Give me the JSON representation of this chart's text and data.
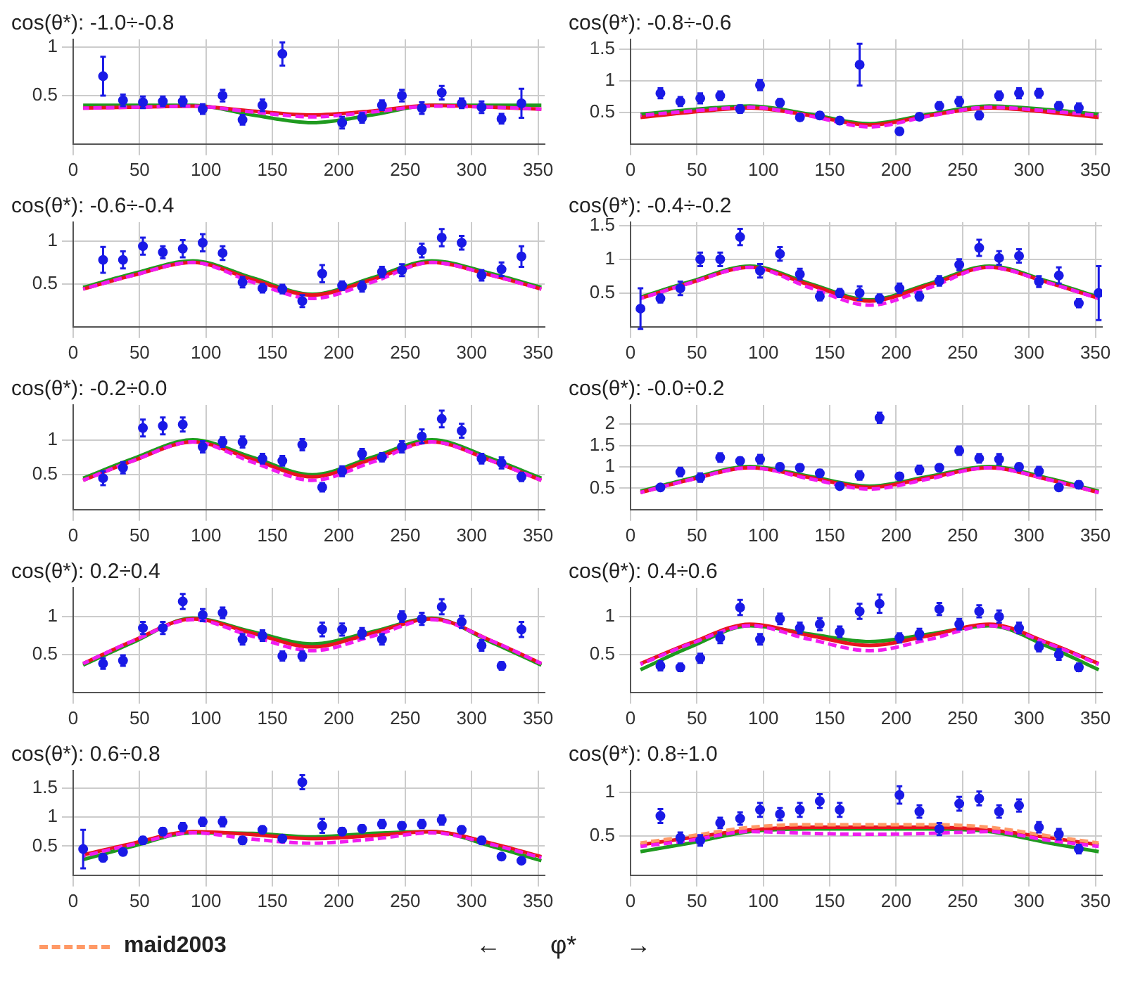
{
  "chart_data": [
    {
      "type": "scatter",
      "title": "cos(θ*): -1.0÷-0.8",
      "xlim": [
        0,
        355
      ],
      "xticks": [
        0,
        50,
        100,
        150,
        200,
        250,
        300,
        350
      ],
      "ylim": [
        0,
        1.08
      ],
      "yticks": [
        0.5,
        1
      ],
      "grid": true,
      "series": [
        {
          "type": "scatter",
          "marker": "circle",
          "color": "#1a1ae6",
          "x": [
            22.5,
            37.5,
            52.5,
            67.5,
            82.5,
            97.5,
            112.5,
            127.5,
            142.5,
            157.5,
            202.5,
            217.5,
            232.5,
            247.5,
            262.5,
            277.5,
            292.5,
            307.5,
            322.5,
            337.5
          ],
          "values": [
            0.7,
            0.45,
            0.43,
            0.44,
            0.44,
            0.36,
            0.5,
            0.25,
            0.4,
            0.93,
            0.22,
            0.27,
            0.4,
            0.5,
            0.37,
            0.53,
            0.42,
            0.38,
            0.26,
            0.42
          ],
          "errors": [
            0.2,
            0.06,
            0.06,
            0.05,
            0.05,
            0.05,
            0.06,
            0.05,
            0.06,
            0.12,
            0.06,
            0.05,
            0.05,
            0.06,
            0.06,
            0.07,
            0.05,
            0.06,
            0.05,
            0.15
          ]
        },
        {
          "type": "line",
          "color": "#e8141e",
          "x": [
            7.5,
            45,
            90,
            135,
            180,
            225,
            270,
            315,
            352.5
          ],
          "values": [
            0.37,
            0.38,
            0.39,
            0.34,
            0.3,
            0.34,
            0.4,
            0.38,
            0.36
          ]
        },
        {
          "type": "line",
          "color": "#1f9a1f",
          "x": [
            7.5,
            45,
            90,
            135,
            180,
            225,
            270,
            315,
            352.5
          ],
          "values": [
            0.4,
            0.4,
            0.4,
            0.3,
            0.22,
            0.3,
            0.4,
            0.4,
            0.4
          ]
        },
        {
          "type": "line",
          "color": "#f01cf0",
          "line_style": "dashed",
          "x": [
            7.5,
            45,
            90,
            135,
            180,
            225,
            270,
            315,
            352.5
          ],
          "values": [
            0.37,
            0.38,
            0.39,
            0.33,
            0.28,
            0.33,
            0.39,
            0.38,
            0.36
          ]
        }
      ]
    },
    {
      "type": "scatter",
      "title": "cos(θ*): -0.8÷-0.6",
      "xlim": [
        0,
        355
      ],
      "xticks": [
        0,
        50,
        100,
        150,
        200,
        250,
        300,
        350
      ],
      "ylim": [
        0,
        1.65
      ],
      "yticks": [
        0.5,
        1,
        1.5
      ],
      "grid": true,
      "series": [
        {
          "type": "scatter",
          "marker": "circle",
          "color": "#1a1ae6",
          "x": [
            22.5,
            37.5,
            52.5,
            67.5,
            82.5,
            97.5,
            112.5,
            127.5,
            142.5,
            157.5,
            172.5,
            202.5,
            217.5,
            232.5,
            247.5,
            262.5,
            277.5,
            292.5,
            307.5,
            322.5,
            337.5
          ],
          "values": [
            0.8,
            0.67,
            0.72,
            0.76,
            0.55,
            0.93,
            0.65,
            0.42,
            0.45,
            0.37,
            1.25,
            0.2,
            0.43,
            0.6,
            0.67,
            0.45,
            0.76,
            0.8,
            0.8,
            0.6,
            0.57
          ],
          "errors": [
            0.08,
            0.07,
            0.08,
            0.07,
            0.06,
            0.08,
            0.06,
            0.05,
            0.05,
            0.05,
            0.33,
            0.05,
            0.05,
            0.06,
            0.07,
            0.06,
            0.07,
            0.08,
            0.07,
            0.06,
            0.07
          ]
        },
        {
          "type": "line",
          "color": "#e8141e",
          "x": [
            7.5,
            45,
            90,
            135,
            180,
            225,
            270,
            315,
            352.5
          ],
          "values": [
            0.42,
            0.5,
            0.57,
            0.45,
            0.3,
            0.45,
            0.57,
            0.5,
            0.42
          ]
        },
        {
          "type": "line",
          "color": "#1f9a1f",
          "x": [
            7.5,
            45,
            90,
            135,
            180,
            225,
            270,
            315,
            352.5
          ],
          "values": [
            0.47,
            0.54,
            0.6,
            0.47,
            0.32,
            0.47,
            0.6,
            0.54,
            0.47
          ]
        },
        {
          "type": "line",
          "color": "#f01cf0",
          "line_style": "dashed",
          "x": [
            7.5,
            45,
            90,
            135,
            180,
            225,
            270,
            315,
            352.5
          ],
          "values": [
            0.45,
            0.52,
            0.58,
            0.44,
            0.27,
            0.44,
            0.58,
            0.52,
            0.45
          ]
        }
      ]
    },
    {
      "type": "scatter",
      "title": "cos(θ*): -0.6÷-0.4",
      "xlim": [
        0,
        355
      ],
      "xticks": [
        0,
        50,
        100,
        150,
        200,
        250,
        300,
        350
      ],
      "ylim": [
        0,
        1.22
      ],
      "yticks": [
        0.5,
        1
      ],
      "grid": true,
      "series": [
        {
          "type": "scatter",
          "marker": "circle",
          "color": "#1a1ae6",
          "x": [
            22.5,
            37.5,
            52.5,
            67.5,
            82.5,
            97.5,
            112.5,
            127.5,
            142.5,
            157.5,
            172.5,
            187.5,
            202.5,
            217.5,
            232.5,
            247.5,
            262.5,
            277.5,
            292.5,
            307.5,
            322.5,
            337.5
          ],
          "values": [
            0.78,
            0.78,
            0.94,
            0.87,
            0.91,
            0.98,
            0.86,
            0.52,
            0.45,
            0.44,
            0.3,
            0.62,
            0.48,
            0.47,
            0.64,
            0.66,
            0.89,
            1.04,
            0.98,
            0.6,
            0.67,
            0.82
          ],
          "errors": [
            0.15,
            0.1,
            0.1,
            0.07,
            0.1,
            0.1,
            0.08,
            0.06,
            0.05,
            0.05,
            0.07,
            0.1,
            0.05,
            0.06,
            0.06,
            0.07,
            0.08,
            0.1,
            0.08,
            0.06,
            0.08,
            0.12
          ]
        },
        {
          "type": "line",
          "color": "#e8141e",
          "x": [
            7.5,
            45,
            90,
            135,
            180,
            225,
            270,
            315,
            352.5
          ],
          "values": [
            0.44,
            0.6,
            0.75,
            0.55,
            0.37,
            0.55,
            0.75,
            0.6,
            0.44
          ]
        },
        {
          "type": "line",
          "color": "#1f9a1f",
          "x": [
            7.5,
            45,
            90,
            135,
            180,
            225,
            270,
            315,
            352.5
          ],
          "values": [
            0.46,
            0.62,
            0.77,
            0.57,
            0.38,
            0.57,
            0.77,
            0.62,
            0.46
          ]
        },
        {
          "type": "line",
          "color": "#f01cf0",
          "line_style": "dashed",
          "x": [
            7.5,
            45,
            90,
            135,
            180,
            225,
            270,
            315,
            352.5
          ],
          "values": [
            0.44,
            0.6,
            0.75,
            0.52,
            0.33,
            0.52,
            0.75,
            0.6,
            0.44
          ]
        }
      ]
    },
    {
      "type": "scatter",
      "title": "cos(θ*): -0.4÷-0.2",
      "xlim": [
        0,
        355
      ],
      "xticks": [
        0,
        50,
        100,
        150,
        200,
        250,
        300,
        350
      ],
      "ylim": [
        0,
        1.55
      ],
      "yticks": [
        0.5,
        1,
        1.5
      ],
      "grid": true,
      "series": [
        {
          "type": "scatter",
          "marker": "circle",
          "color": "#1a1ae6",
          "x": [
            7.5,
            22.5,
            37.5,
            52.5,
            67.5,
            82.5,
            97.5,
            112.5,
            127.5,
            142.5,
            157.5,
            172.5,
            187.5,
            202.5,
            217.5,
            232.5,
            247.5,
            262.5,
            277.5,
            292.5,
            307.5,
            322.5,
            337.5,
            352.5
          ],
          "values": [
            0.27,
            0.42,
            0.57,
            1.0,
            1.0,
            1.33,
            0.83,
            1.08,
            0.78,
            0.45,
            0.5,
            0.5,
            0.42,
            0.57,
            0.45,
            0.68,
            0.92,
            1.17,
            1.02,
            1.05,
            0.67,
            0.76,
            0.35,
            0.5
          ],
          "errors": [
            0.3,
            0.06,
            0.1,
            0.1,
            0.1,
            0.12,
            0.1,
            0.1,
            0.08,
            0.06,
            0.06,
            0.1,
            0.06,
            0.07,
            0.06,
            0.07,
            0.08,
            0.12,
            0.1,
            0.1,
            0.08,
            0.12,
            0.06,
            0.4
          ]
        },
        {
          "type": "line",
          "color": "#e8141e",
          "x": [
            7.5,
            45,
            90,
            135,
            180,
            225,
            270,
            315,
            352.5
          ],
          "values": [
            0.42,
            0.65,
            0.88,
            0.62,
            0.38,
            0.62,
            0.88,
            0.65,
            0.42
          ]
        },
        {
          "type": "line",
          "color": "#1f9a1f",
          "x": [
            7.5,
            45,
            90,
            135,
            180,
            225,
            270,
            315,
            352.5
          ],
          "values": [
            0.44,
            0.67,
            0.9,
            0.64,
            0.4,
            0.64,
            0.9,
            0.67,
            0.44
          ]
        },
        {
          "type": "line",
          "color": "#f01cf0",
          "line_style": "dashed",
          "x": [
            7.5,
            45,
            90,
            135,
            180,
            225,
            270,
            315,
            352.5
          ],
          "values": [
            0.42,
            0.65,
            0.88,
            0.58,
            0.32,
            0.58,
            0.88,
            0.65,
            0.42
          ]
        }
      ]
    },
    {
      "type": "scatter",
      "title": "cos(θ*): -0.2÷0.0",
      "xlim": [
        0,
        355
      ],
      "xticks": [
        0,
        50,
        100,
        150,
        200,
        250,
        300,
        350
      ],
      "ylim": [
        0,
        1.5
      ],
      "yticks": [
        0.5,
        1
      ],
      "grid": true,
      "series": [
        {
          "type": "scatter",
          "marker": "circle",
          "color": "#1a1ae6",
          "x": [
            22.5,
            37.5,
            52.5,
            67.5,
            82.5,
            97.5,
            112.5,
            127.5,
            142.5,
            157.5,
            172.5,
            187.5,
            202.5,
            217.5,
            232.5,
            247.5,
            262.5,
            277.5,
            292.5,
            307.5,
            322.5,
            337.5
          ],
          "values": [
            0.45,
            0.6,
            1.17,
            1.2,
            1.22,
            0.9,
            0.97,
            0.97,
            0.73,
            0.7,
            0.93,
            0.32,
            0.55,
            0.8,
            0.75,
            0.9,
            1.05,
            1.3,
            1.13,
            0.73,
            0.67,
            0.47
          ],
          "errors": [
            0.1,
            0.08,
            0.12,
            0.12,
            0.1,
            0.08,
            0.07,
            0.08,
            0.07,
            0.07,
            0.08,
            0.06,
            0.07,
            0.07,
            0.06,
            0.08,
            0.1,
            0.12,
            0.1,
            0.07,
            0.08,
            0.06
          ]
        },
        {
          "type": "line",
          "color": "#e8141e",
          "x": [
            7.5,
            45,
            90,
            135,
            180,
            225,
            270,
            315,
            352.5
          ],
          "values": [
            0.42,
            0.7,
            0.97,
            0.72,
            0.47,
            0.72,
            0.97,
            0.7,
            0.42
          ]
        },
        {
          "type": "line",
          "color": "#1f9a1f",
          "x": [
            7.5,
            45,
            90,
            135,
            180,
            225,
            270,
            315,
            352.5
          ],
          "values": [
            0.45,
            0.73,
            1.0,
            0.75,
            0.5,
            0.75,
            1.0,
            0.73,
            0.45
          ]
        },
        {
          "type": "line",
          "color": "#f01cf0",
          "line_style": "dashed",
          "x": [
            7.5,
            45,
            90,
            135,
            180,
            225,
            270,
            315,
            352.5
          ],
          "values": [
            0.42,
            0.7,
            0.97,
            0.68,
            0.42,
            0.68,
            0.97,
            0.7,
            0.42
          ]
        }
      ]
    },
    {
      "type": "scatter",
      "title": "cos(θ*): -0.0÷0.2",
      "xlim": [
        0,
        355
      ],
      "xticks": [
        0,
        50,
        100,
        150,
        200,
        250,
        300,
        350
      ],
      "ylim": [
        0,
        2.45
      ],
      "yticks": [
        0.5,
        1,
        1.5,
        2
      ],
      "grid": true,
      "series": [
        {
          "type": "scatter",
          "marker": "circle",
          "color": "#1a1ae6",
          "x": [
            22.5,
            37.5,
            52.5,
            67.5,
            82.5,
            97.5,
            112.5,
            127.5,
            142.5,
            157.5,
            172.5,
            187.5,
            202.5,
            217.5,
            232.5,
            247.5,
            262.5,
            277.5,
            292.5,
            307.5,
            322.5,
            337.5
          ],
          "values": [
            0.52,
            0.88,
            0.75,
            1.22,
            1.14,
            1.18,
            1.0,
            0.98,
            0.85,
            0.55,
            0.8,
            2.15,
            0.78,
            0.93,
            0.98,
            1.38,
            1.2,
            1.18,
            1.0,
            0.9,
            0.52,
            0.58
          ],
          "errors": [
            null,
            0.1,
            0.1,
            0.1,
            0.08,
            0.1,
            0.08,
            0.08,
            0.08,
            null,
            0.1,
            0.12,
            0.08,
            0.1,
            0.08,
            0.1,
            0.1,
            0.12,
            0.08,
            0.1,
            null,
            0.08
          ]
        },
        {
          "type": "line",
          "color": "#e8141e",
          "x": [
            7.5,
            45,
            90,
            135,
            180,
            225,
            270,
            315,
            352.5
          ],
          "values": [
            0.4,
            0.7,
            0.98,
            0.75,
            0.52,
            0.75,
            0.98,
            0.7,
            0.4
          ]
        },
        {
          "type": "line",
          "color": "#1f9a1f",
          "x": [
            7.5,
            45,
            90,
            135,
            180,
            225,
            270,
            315,
            352.5
          ],
          "values": [
            0.43,
            0.73,
            1.01,
            0.78,
            0.55,
            0.78,
            1.01,
            0.73,
            0.43
          ]
        },
        {
          "type": "line",
          "color": "#f01cf0",
          "line_style": "dashed",
          "x": [
            7.5,
            45,
            90,
            135,
            180,
            225,
            270,
            315,
            352.5
          ],
          "values": [
            0.4,
            0.7,
            0.98,
            0.72,
            0.48,
            0.72,
            0.98,
            0.7,
            0.4
          ]
        }
      ]
    },
    {
      "type": "scatter",
      "title": "cos(θ*): 0.2÷0.4",
      "xlim": [
        0,
        355
      ],
      "xticks": [
        0,
        50,
        100,
        150,
        200,
        250,
        300,
        350
      ],
      "ylim": [
        0,
        1.38
      ],
      "yticks": [
        0.5,
        1
      ],
      "grid": true,
      "series": [
        {
          "type": "scatter",
          "marker": "circle",
          "color": "#1a1ae6",
          "x": [
            22.5,
            37.5,
            52.5,
            67.5,
            82.5,
            97.5,
            112.5,
            127.5,
            142.5,
            157.5,
            172.5,
            187.5,
            202.5,
            217.5,
            232.5,
            247.5,
            262.5,
            277.5,
            292.5,
            307.5,
            322.5,
            337.5
          ],
          "values": [
            0.38,
            0.42,
            0.85,
            0.85,
            1.2,
            1.02,
            1.05,
            0.7,
            0.75,
            0.48,
            0.48,
            0.83,
            0.83,
            0.78,
            0.7,
            1.0,
            0.97,
            1.13,
            0.93,
            0.62,
            0.35,
            0.83
          ],
          "errors": [
            0.07,
            0.07,
            0.08,
            0.08,
            0.1,
            0.08,
            0.07,
            0.07,
            0.07,
            0.06,
            0.06,
            0.09,
            0.08,
            0.07,
            0.07,
            0.07,
            0.08,
            0.1,
            0.08,
            0.07,
            0.05,
            0.1
          ]
        },
        {
          "type": "line",
          "color": "#e8141e",
          "x": [
            7.5,
            45,
            90,
            135,
            180,
            225,
            270,
            315,
            352.5
          ],
          "values": [
            0.38,
            0.68,
            0.97,
            0.78,
            0.6,
            0.78,
            0.97,
            0.68,
            0.38
          ]
        },
        {
          "type": "line",
          "color": "#1f9a1f",
          "x": [
            7.5,
            45,
            90,
            135,
            180,
            225,
            270,
            315,
            352.5
          ],
          "values": [
            0.36,
            0.66,
            0.98,
            0.8,
            0.64,
            0.8,
            0.98,
            0.66,
            0.36
          ]
        },
        {
          "type": "line",
          "color": "#f01cf0",
          "line_style": "dashed",
          "x": [
            7.5,
            45,
            90,
            135,
            180,
            225,
            270,
            315,
            352.5
          ],
          "values": [
            0.38,
            0.68,
            0.96,
            0.74,
            0.55,
            0.74,
            0.96,
            0.68,
            0.38
          ]
        }
      ]
    },
    {
      "type": "scatter",
      "title": "cos(θ*): 0.4÷0.6",
      "xlim": [
        0,
        355
      ],
      "xticks": [
        0,
        50,
        100,
        150,
        200,
        250,
        300,
        350
      ],
      "ylim": [
        0,
        1.38
      ],
      "yticks": [
        0.5,
        1
      ],
      "grid": true,
      "series": [
        {
          "type": "scatter",
          "marker": "circle",
          "color": "#1a1ae6",
          "x": [
            22.5,
            37.5,
            52.5,
            67.5,
            82.5,
            97.5,
            112.5,
            127.5,
            142.5,
            157.5,
            172.5,
            187.5,
            202.5,
            217.5,
            232.5,
            247.5,
            262.5,
            277.5,
            292.5,
            307.5,
            322.5,
            337.5
          ],
          "values": [
            0.35,
            0.33,
            0.45,
            0.72,
            1.12,
            0.7,
            0.97,
            0.85,
            0.9,
            0.8,
            1.07,
            1.17,
            0.72,
            0.77,
            1.1,
            0.9,
            1.07,
            1.0,
            0.85,
            0.6,
            0.5,
            0.33
          ],
          "errors": [
            0.06,
            0.05,
            0.06,
            0.07,
            0.1,
            0.07,
            0.07,
            0.07,
            0.08,
            0.07,
            0.1,
            0.12,
            0.06,
            0.07,
            0.08,
            0.07,
            0.08,
            0.08,
            0.07,
            0.06,
            0.07,
            0.05
          ]
        },
        {
          "type": "line",
          "color": "#e8141e",
          "x": [
            7.5,
            45,
            90,
            135,
            180,
            225,
            270,
            315,
            352.5
          ],
          "values": [
            0.38,
            0.65,
            0.9,
            0.75,
            0.62,
            0.75,
            0.9,
            0.65,
            0.38
          ]
        },
        {
          "type": "line",
          "color": "#1f9a1f",
          "x": [
            7.5,
            45,
            90,
            135,
            180,
            225,
            270,
            315,
            352.5
          ],
          "values": [
            0.3,
            0.6,
            0.88,
            0.77,
            0.67,
            0.77,
            0.88,
            0.6,
            0.3
          ]
        },
        {
          "type": "line",
          "color": "#f01cf0",
          "line_style": "dashed",
          "x": [
            7.5,
            45,
            90,
            135,
            180,
            225,
            270,
            315,
            352.5
          ],
          "values": [
            0.37,
            0.64,
            0.88,
            0.7,
            0.55,
            0.7,
            0.88,
            0.64,
            0.37
          ]
        }
      ]
    },
    {
      "type": "scatter",
      "title": "cos(θ*): 0.6÷0.8",
      "xlim": [
        0,
        355
      ],
      "xticks": [
        0,
        50,
        100,
        150,
        200,
        250,
        300,
        350
      ],
      "ylim": [
        0,
        1.8
      ],
      "yticks": [
        0.5,
        1,
        1.5
      ],
      "grid": true,
      "series": [
        {
          "type": "scatter",
          "marker": "circle",
          "color": "#1a1ae6",
          "x": [
            7.5,
            22.5,
            37.5,
            52.5,
            67.5,
            82.5,
            97.5,
            112.5,
            127.5,
            142.5,
            157.5,
            172.5,
            187.5,
            202.5,
            217.5,
            232.5,
            247.5,
            262.5,
            277.5,
            292.5,
            307.5,
            322.5,
            337.5
          ],
          "values": [
            0.45,
            0.3,
            0.4,
            0.6,
            0.75,
            0.83,
            0.92,
            0.92,
            0.6,
            0.78,
            0.63,
            1.6,
            0.85,
            0.75,
            0.8,
            0.88,
            0.85,
            0.88,
            0.95,
            0.78,
            0.6,
            0.32,
            0.25
          ],
          "errors": [
            0.33,
            0.06,
            0.05,
            0.06,
            0.06,
            0.07,
            0.07,
            0.08,
            0.06,
            0.06,
            0.05,
            0.12,
            0.12,
            0.06,
            0.06,
            0.07,
            0.06,
            0.07,
            0.08,
            0.06,
            0.06,
            0.05,
            0.05
          ]
        },
        {
          "type": "line",
          "color": "#e8141e",
          "x": [
            7.5,
            45,
            90,
            135,
            180,
            225,
            270,
            315,
            352.5
          ],
          "values": [
            0.35,
            0.55,
            0.75,
            0.7,
            0.63,
            0.68,
            0.75,
            0.55,
            0.32
          ]
        },
        {
          "type": "line",
          "color": "#1f9a1f",
          "x": [
            7.5,
            45,
            90,
            135,
            180,
            225,
            270,
            315,
            352.5
          ],
          "values": [
            0.27,
            0.5,
            0.73,
            0.72,
            0.66,
            0.72,
            0.75,
            0.5,
            0.25
          ]
        },
        {
          "type": "line",
          "color": "#f01cf0",
          "line_style": "dashed",
          "x": [
            7.5,
            45,
            90,
            135,
            180,
            225,
            270,
            315,
            352.5
          ],
          "values": [
            0.33,
            0.53,
            0.73,
            0.62,
            0.55,
            0.62,
            0.73,
            0.53,
            0.3
          ]
        }
      ]
    },
    {
      "type": "scatter",
      "title": "cos(θ*): 0.8÷1.0",
      "xlabel": "←       φ*       →",
      "legend": "bottom left",
      "xlim": [
        0,
        355
      ],
      "xticks": [
        0,
        50,
        100,
        150,
        200,
        250,
        300,
        350
      ],
      "ylim": [
        0.05,
        1.25
      ],
      "yticks": [
        0.5,
        1
      ],
      "grid": true,
      "series": [
        {
          "type": "scatter",
          "marker": "circle",
          "color": "#1a1ae6",
          "x": [
            22.5,
            37.5,
            52.5,
            67.5,
            82.5,
            97.5,
            112.5,
            127.5,
            142.5,
            157.5,
            202.5,
            217.5,
            232.5,
            247.5,
            262.5,
            277.5,
            292.5,
            307.5,
            322.5,
            337.5
          ],
          "values": [
            0.73,
            0.48,
            0.45,
            0.65,
            0.7,
            0.8,
            0.75,
            0.8,
            0.9,
            0.8,
            0.97,
            0.78,
            0.58,
            0.87,
            0.93,
            0.78,
            0.85,
            0.6,
            0.52,
            0.35
          ],
          "errors": [
            0.08,
            0.06,
            0.06,
            0.06,
            0.07,
            0.08,
            0.07,
            0.08,
            0.08,
            0.08,
            0.1,
            0.07,
            0.07,
            0.08,
            0.08,
            0.07,
            0.07,
            0.06,
            0.06,
            0.05
          ]
        },
        {
          "type": "line",
          "color": "#e8141e",
          "x": [
            7.5,
            45,
            90,
            135,
            180,
            225,
            270,
            315,
            352.5
          ],
          "values": [
            0.4,
            0.48,
            0.57,
            0.6,
            0.6,
            0.6,
            0.57,
            0.48,
            0.4
          ]
        },
        {
          "type": "line",
          "color": "#1f9a1f",
          "x": [
            7.5,
            45,
            90,
            135,
            180,
            225,
            270,
            315,
            352.5
          ],
          "values": [
            0.32,
            0.42,
            0.55,
            0.58,
            0.58,
            0.58,
            0.55,
            0.42,
            0.32
          ]
        },
        {
          "type": "line",
          "color": "#f01cf0",
          "line_style": "dashed",
          "x": [
            7.5,
            45,
            90,
            135,
            180,
            225,
            270,
            315,
            352.5
          ],
          "values": [
            0.38,
            0.45,
            0.55,
            0.53,
            0.52,
            0.53,
            0.55,
            0.45,
            0.38
          ]
        },
        {
          "type": "line",
          "name": "maid2003",
          "color": "#ff9966",
          "line_style": "dashed",
          "x": [
            7.5,
            45,
            90,
            135,
            180,
            225,
            270,
            315,
            352.5
          ],
          "values": [
            0.42,
            0.5,
            0.6,
            0.63,
            0.63,
            0.63,
            0.6,
            0.5,
            0.42
          ]
        }
      ]
    }
  ]
}
